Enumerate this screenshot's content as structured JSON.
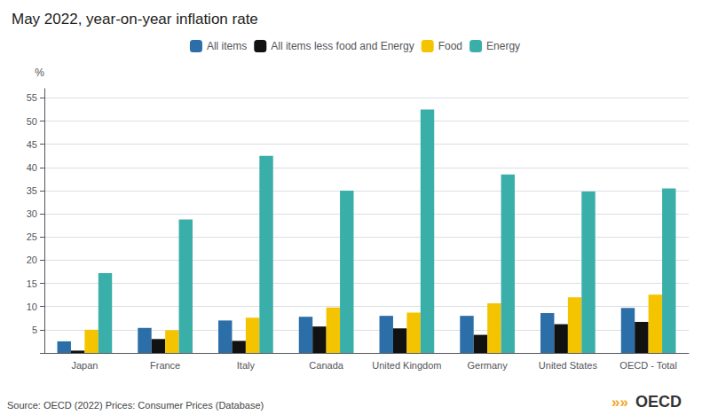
{
  "chart_data": {
    "type": "bar",
    "title": "May 2022, year-on-year inflation rate",
    "ylabel": "%",
    "categories": [
      "Japan",
      "France",
      "Italy",
      "Canada",
      "United Kingdom",
      "Germany",
      "United States",
      "OECD - Total"
    ],
    "series": [
      {
        "name": "All items",
        "color": "#2B6EA8",
        "values": [
          2.5,
          5.4,
          7.0,
          7.8,
          8.0,
          8.0,
          8.6,
          9.7
        ]
      },
      {
        "name": "All items less food and Energy",
        "color": "#111111",
        "values": [
          0.5,
          3.0,
          2.6,
          5.7,
          5.3,
          3.9,
          6.2,
          6.7
        ]
      },
      {
        "name": "Food",
        "color": "#F5C400",
        "values": [
          5.0,
          4.9,
          7.6,
          9.8,
          8.7,
          10.7,
          12.0,
          12.6
        ]
      },
      {
        "name": "Energy",
        "color": "#3AAFA9",
        "values": [
          17.2,
          28.8,
          42.5,
          35.0,
          52.5,
          38.5,
          34.8,
          35.5
        ]
      }
    ],
    "ylim": [
      0,
      57
    ],
    "yticks": [
      {
        "value": 0,
        "label": null
      },
      5,
      10,
      15,
      20,
      25,
      30,
      35,
      40,
      45,
      50,
      55
    ],
    "grid": true,
    "legend": "top",
    "annotations": [
      "Source: OECD (2022) Prices: Consumer Prices (Database)",
      "OECD",
      "»»"
    ]
  }
}
